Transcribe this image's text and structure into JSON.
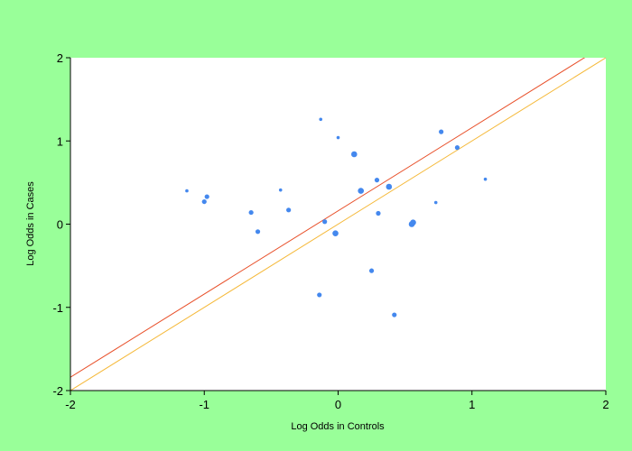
{
  "chart_data": {
    "type": "scatter",
    "title": "",
    "xlabel": "Log Odds in Controls",
    "ylabel": "Log Odds in Cases",
    "xlim": [
      -2,
      2
    ],
    "ylim": [
      -2,
      2
    ],
    "xticks": [
      -2,
      -1,
      0,
      1,
      2
    ],
    "yticks": [
      -2,
      -1,
      0,
      1,
      2
    ],
    "xtick_labels": [
      "-2",
      "-1",
      "0",
      "1",
      "2"
    ],
    "ytick_labels": [
      "-2",
      "-1",
      "0",
      "1",
      "2"
    ],
    "grid": false,
    "legend": "none",
    "colors": {
      "background": "#99ff99",
      "plot_area": "#ffffff",
      "points": "#4488ee",
      "line_fit": "#e8502a",
      "line_equality": "#f5b93a"
    },
    "points": [
      {
        "x": -1.13,
        "y": 0.4,
        "w": 1
      },
      {
        "x": -0.98,
        "y": 0.33,
        "w": 2
      },
      {
        "x": -1.0,
        "y": 0.27,
        "w": 2
      },
      {
        "x": -0.65,
        "y": 0.14,
        "w": 2
      },
      {
        "x": -0.6,
        "y": -0.09,
        "w": 2
      },
      {
        "x": -0.43,
        "y": 0.41,
        "w": 1
      },
      {
        "x": -0.37,
        "y": 0.17,
        "w": 2
      },
      {
        "x": -0.13,
        "y": 1.26,
        "w": 1
      },
      {
        "x": 0.0,
        "y": 1.04,
        "w": 1
      },
      {
        "x": -0.1,
        "y": 0.03,
        "w": 2
      },
      {
        "x": -0.02,
        "y": -0.11,
        "w": 3
      },
      {
        "x": -0.14,
        "y": -0.85,
        "w": 2
      },
      {
        "x": 0.12,
        "y": 0.84,
        "w": 3
      },
      {
        "x": 0.17,
        "y": 0.4,
        "w": 3
      },
      {
        "x": 0.29,
        "y": 0.53,
        "w": 2
      },
      {
        "x": 0.3,
        "y": 0.13,
        "w": 2
      },
      {
        "x": 0.25,
        "y": -0.56,
        "w": 2
      },
      {
        "x": 0.38,
        "y": 0.45,
        "w": 3
      },
      {
        "x": 0.42,
        "y": -1.09,
        "w": 2
      },
      {
        "x": 0.55,
        "y": 0.0,
        "w": 3
      },
      {
        "x": 0.56,
        "y": 0.02,
        "w": 3
      },
      {
        "x": 0.73,
        "y": 0.26,
        "w": 1
      },
      {
        "x": 0.77,
        "y": 1.11,
        "w": 2
      },
      {
        "x": 0.89,
        "y": 0.92,
        "w": 2
      },
      {
        "x": 1.1,
        "y": 0.54,
        "w": 1
      }
    ],
    "lines": [
      {
        "role": "fit",
        "slope": 1,
        "intercept": 0.16
      },
      {
        "role": "equality",
        "slope": 1,
        "intercept": 0
      }
    ]
  }
}
